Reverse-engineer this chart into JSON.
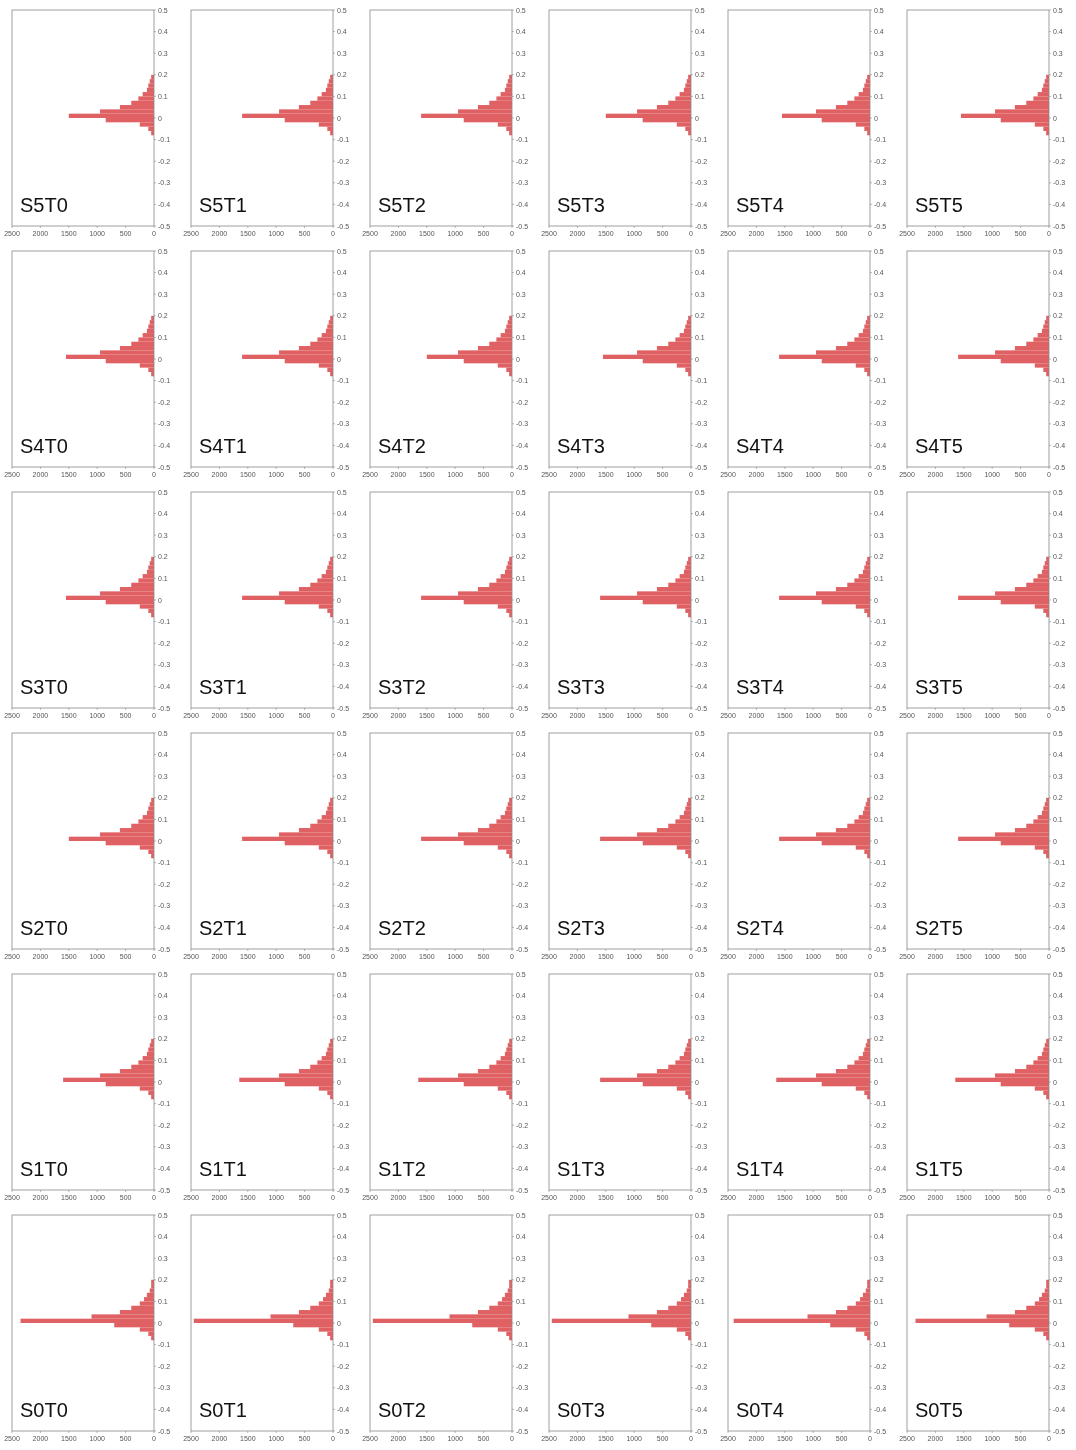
{
  "chart_data": [
    {
      "type": "histogram",
      "orientation": "horizontal",
      "title": "S5T0",
      "bins": [
        -0.08,
        -0.06,
        -0.04,
        -0.02,
        0,
        0.02,
        0.04,
        0.06,
        0.08,
        0.1,
        0.12,
        0.14,
        0.16,
        0.18,
        0.2
      ],
      "values": [
        50,
        100,
        250,
        850,
        1500,
        950,
        600,
        400,
        275,
        200,
        125,
        100,
        75,
        50
      ],
      "color": "#e06163",
      "xlim": [
        2500,
        0
      ],
      "xticks": [
        0,
        500,
        1000,
        1500,
        2000,
        2500
      ],
      "ylim": [
        -0.5,
        0.5
      ],
      "yticks": [
        -0.5,
        -0.4,
        -0.3,
        -0.2,
        -0.1,
        0,
        0.1,
        0.2,
        0.3,
        0.4,
        0.5
      ]
    },
    {
      "type": "histogram",
      "orientation": "horizontal",
      "title": "S5T1",
      "bins": [
        -0.08,
        -0.06,
        -0.04,
        -0.02,
        0,
        0.02,
        0.04,
        0.06,
        0.08,
        0.1,
        0.12,
        0.14,
        0.16,
        0.18,
        0.2
      ],
      "values": [
        50,
        100,
        250,
        850,
        1600,
        950,
        600,
        400,
        275,
        200,
        125,
        100,
        75,
        50
      ],
      "color": "#e06163",
      "xlim": [
        2500,
        0
      ],
      "xticks": [
        0,
        500,
        1000,
        1500,
        2000,
        2500
      ],
      "ylim": [
        -0.5,
        0.5
      ],
      "yticks": [
        -0.5,
        -0.4,
        -0.3,
        -0.2,
        -0.1,
        0,
        0.1,
        0.2,
        0.3,
        0.4,
        0.5
      ]
    },
    {
      "type": "histogram",
      "orientation": "horizontal",
      "title": "S5T2",
      "bins": [
        -0.08,
        -0.06,
        -0.04,
        -0.02,
        0,
        0.02,
        0.04,
        0.06,
        0.08,
        0.1,
        0.12,
        0.14,
        0.16,
        0.18,
        0.2
      ],
      "values": [
        50,
        100,
        250,
        850,
        1600,
        950,
        600,
        400,
        275,
        200,
        125,
        100,
        75,
        50
      ],
      "color": "#e06163",
      "xlim": [
        2500,
        0
      ],
      "xticks": [
        0,
        500,
        1000,
        1500,
        2000,
        2500
      ],
      "ylim": [
        -0.5,
        0.5
      ],
      "yticks": [
        -0.5,
        -0.4,
        -0.3,
        -0.2,
        -0.1,
        0,
        0.1,
        0.2,
        0.3,
        0.4,
        0.5
      ]
    },
    {
      "type": "histogram",
      "orientation": "horizontal",
      "title": "S5T3",
      "bins": [
        -0.08,
        -0.06,
        -0.04,
        -0.02,
        0,
        0.02,
        0.04,
        0.06,
        0.08,
        0.1,
        0.12,
        0.14,
        0.16,
        0.18,
        0.2
      ],
      "values": [
        50,
        100,
        250,
        850,
        1500,
        950,
        600,
        400,
        275,
        200,
        125,
        100,
        75,
        50
      ],
      "color": "#e06163",
      "xlim": [
        2500,
        0
      ],
      "xticks": [
        0,
        500,
        1000,
        1500,
        2000,
        2500
      ],
      "ylim": [
        -0.5,
        0.5
      ],
      "yticks": [
        -0.5,
        -0.4,
        -0.3,
        -0.2,
        -0.1,
        0,
        0.1,
        0.2,
        0.3,
        0.4,
        0.5
      ]
    },
    {
      "type": "histogram",
      "orientation": "horizontal",
      "title": "S5T4",
      "bins": [
        -0.08,
        -0.06,
        -0.04,
        -0.02,
        0,
        0.02,
        0.04,
        0.06,
        0.08,
        0.1,
        0.12,
        0.14,
        0.16,
        0.18,
        0.2
      ],
      "values": [
        50,
        100,
        250,
        850,
        1550,
        950,
        600,
        400,
        275,
        200,
        125,
        100,
        75,
        50
      ],
      "color": "#e06163",
      "xlim": [
        2500,
        0
      ],
      "xticks": [
        0,
        500,
        1000,
        1500,
        2000,
        2500
      ],
      "ylim": [
        -0.5,
        0.5
      ],
      "yticks": [
        -0.5,
        -0.4,
        -0.3,
        -0.2,
        -0.1,
        0,
        0.1,
        0.2,
        0.3,
        0.4,
        0.5
      ]
    },
    {
      "type": "histogram",
      "orientation": "horizontal",
      "title": "S5T5",
      "bins": [
        -0.08,
        -0.06,
        -0.04,
        -0.02,
        0,
        0.02,
        0.04,
        0.06,
        0.08,
        0.1,
        0.12,
        0.14,
        0.16,
        0.18,
        0.2
      ],
      "values": [
        50,
        100,
        250,
        850,
        1550,
        950,
        600,
        400,
        275,
        200,
        125,
        100,
        75,
        50
      ],
      "color": "#e06163",
      "xlim": [
        2500,
        0
      ],
      "xticks": [
        0,
        500,
        1000,
        1500,
        2000,
        2500
      ],
      "ylim": [
        -0.5,
        0.5
      ],
      "yticks": [
        -0.5,
        -0.4,
        -0.3,
        -0.2,
        -0.1,
        0,
        0.1,
        0.2,
        0.3,
        0.4,
        0.5
      ]
    },
    {
      "type": "histogram",
      "orientation": "horizontal",
      "title": "S4T0",
      "bins": [
        -0.08,
        -0.06,
        -0.04,
        -0.02,
        0,
        0.02,
        0.04,
        0.06,
        0.08,
        0.1,
        0.12,
        0.14,
        0.16,
        0.18,
        0.2
      ],
      "values": [
        50,
        100,
        250,
        850,
        1550,
        950,
        600,
        400,
        275,
        200,
        125,
        100,
        75,
        50
      ],
      "color": "#e06163",
      "xlim": [
        2500,
        0
      ],
      "xticks": [
        0,
        500,
        1000,
        1500,
        2000,
        2500
      ],
      "ylim": [
        -0.5,
        0.5
      ],
      "yticks": [
        -0.5,
        -0.4,
        -0.3,
        -0.2,
        -0.1,
        0,
        0.1,
        0.2,
        0.3,
        0.4,
        0.5
      ]
    },
    {
      "type": "histogram",
      "orientation": "horizontal",
      "title": "S4T1",
      "bins": [
        -0.08,
        -0.06,
        -0.04,
        -0.02,
        0,
        0.02,
        0.04,
        0.06,
        0.08,
        0.1,
        0.12,
        0.14,
        0.16,
        0.18,
        0.2
      ],
      "values": [
        50,
        100,
        250,
        850,
        1600,
        950,
        600,
        400,
        275,
        200,
        125,
        100,
        75,
        50
      ],
      "color": "#e06163",
      "xlim": [
        2500,
        0
      ],
      "xticks": [
        0,
        500,
        1000,
        1500,
        2000,
        2500
      ],
      "ylim": [
        -0.5,
        0.5
      ],
      "yticks": [
        -0.5,
        -0.4,
        -0.3,
        -0.2,
        -0.1,
        0,
        0.1,
        0.2,
        0.3,
        0.4,
        0.5
      ]
    },
    {
      "type": "histogram",
      "orientation": "horizontal",
      "title": "S4T2",
      "bins": [
        -0.08,
        -0.06,
        -0.04,
        -0.02,
        0,
        0.02,
        0.04,
        0.06,
        0.08,
        0.1,
        0.12,
        0.14,
        0.16,
        0.18,
        0.2
      ],
      "values": [
        50,
        100,
        250,
        850,
        1500,
        950,
        600,
        400,
        275,
        200,
        125,
        100,
        75,
        50
      ],
      "color": "#e06163",
      "xlim": [
        2500,
        0
      ],
      "xticks": [
        0,
        500,
        1000,
        1500,
        2000,
        2500
      ],
      "ylim": [
        -0.5,
        0.5
      ],
      "yticks": [
        -0.5,
        -0.4,
        -0.3,
        -0.2,
        -0.1,
        0,
        0.1,
        0.2,
        0.3,
        0.4,
        0.5
      ]
    },
    {
      "type": "histogram",
      "orientation": "horizontal",
      "title": "S4T3",
      "bins": [
        -0.08,
        -0.06,
        -0.04,
        -0.02,
        0,
        0.02,
        0.04,
        0.06,
        0.08,
        0.1,
        0.12,
        0.14,
        0.16,
        0.18,
        0.2
      ],
      "values": [
        50,
        100,
        250,
        850,
        1550,
        950,
        600,
        400,
        275,
        200,
        125,
        100,
        75,
        50
      ],
      "color": "#e06163",
      "xlim": [
        2500,
        0
      ],
      "xticks": [
        0,
        500,
        1000,
        1500,
        2000,
        2500
      ],
      "ylim": [
        -0.5,
        0.5
      ],
      "yticks": [
        -0.5,
        -0.4,
        -0.3,
        -0.2,
        -0.1,
        0,
        0.1,
        0.2,
        0.3,
        0.4,
        0.5
      ]
    },
    {
      "type": "histogram",
      "orientation": "horizontal",
      "title": "S4T4",
      "bins": [
        -0.08,
        -0.06,
        -0.04,
        -0.02,
        0,
        0.02,
        0.04,
        0.06,
        0.08,
        0.1,
        0.12,
        0.14,
        0.16,
        0.18,
        0.2
      ],
      "values": [
        50,
        100,
        250,
        850,
        1600,
        950,
        600,
        400,
        275,
        200,
        125,
        100,
        75,
        50
      ],
      "color": "#e06163",
      "xlim": [
        2500,
        0
      ],
      "xticks": [
        0,
        500,
        1000,
        1500,
        2000,
        2500
      ],
      "ylim": [
        -0.5,
        0.5
      ],
      "yticks": [
        -0.5,
        -0.4,
        -0.3,
        -0.2,
        -0.1,
        0,
        0.1,
        0.2,
        0.3,
        0.4,
        0.5
      ]
    },
    {
      "type": "histogram",
      "orientation": "horizontal",
      "title": "S4T5",
      "bins": [
        -0.08,
        -0.06,
        -0.04,
        -0.02,
        0,
        0.02,
        0.04,
        0.06,
        0.08,
        0.1,
        0.12,
        0.14,
        0.16,
        0.18,
        0.2
      ],
      "values": [
        50,
        100,
        250,
        850,
        1600,
        950,
        600,
        400,
        275,
        200,
        125,
        100,
        75,
        50
      ],
      "color": "#e06163",
      "xlim": [
        2500,
        0
      ],
      "xticks": [
        0,
        500,
        1000,
        1500,
        2000,
        2500
      ],
      "ylim": [
        -0.5,
        0.5
      ],
      "yticks": [
        -0.5,
        -0.4,
        -0.3,
        -0.2,
        -0.1,
        0,
        0.1,
        0.2,
        0.3,
        0.4,
        0.5
      ]
    },
    {
      "type": "histogram",
      "orientation": "horizontal",
      "title": "S3T0",
      "bins": [
        -0.08,
        -0.06,
        -0.04,
        -0.02,
        0,
        0.02,
        0.04,
        0.06,
        0.08,
        0.1,
        0.12,
        0.14,
        0.16,
        0.18,
        0.2
      ],
      "values": [
        50,
        100,
        250,
        850,
        1550,
        950,
        600,
        400,
        275,
        200,
        125,
        100,
        75,
        50
      ],
      "color": "#e06163",
      "xlim": [
        2500,
        0
      ],
      "xticks": [
        0,
        500,
        1000,
        1500,
        2000,
        2500
      ],
      "ylim": [
        -0.5,
        0.5
      ],
      "yticks": [
        -0.5,
        -0.4,
        -0.3,
        -0.2,
        -0.1,
        0,
        0.1,
        0.2,
        0.3,
        0.4,
        0.5
      ]
    },
    {
      "type": "histogram",
      "orientation": "horizontal",
      "title": "S3T1",
      "bins": [
        -0.08,
        -0.06,
        -0.04,
        -0.02,
        0,
        0.02,
        0.04,
        0.06,
        0.08,
        0.1,
        0.12,
        0.14,
        0.16,
        0.18,
        0.2
      ],
      "values": [
        50,
        100,
        250,
        850,
        1600,
        950,
        600,
        400,
        275,
        200,
        125,
        100,
        75,
        50
      ],
      "color": "#e06163",
      "xlim": [
        2500,
        0
      ],
      "xticks": [
        0,
        500,
        1000,
        1500,
        2000,
        2500
      ],
      "ylim": [
        -0.5,
        0.5
      ],
      "yticks": [
        -0.5,
        -0.4,
        -0.3,
        -0.2,
        -0.1,
        0,
        0.1,
        0.2,
        0.3,
        0.4,
        0.5
      ]
    },
    {
      "type": "histogram",
      "orientation": "horizontal",
      "title": "S3T2",
      "bins": [
        -0.08,
        -0.06,
        -0.04,
        -0.02,
        0,
        0.02,
        0.04,
        0.06,
        0.08,
        0.1,
        0.12,
        0.14,
        0.16,
        0.18,
        0.2
      ],
      "values": [
        50,
        100,
        250,
        850,
        1600,
        950,
        600,
        400,
        275,
        200,
        125,
        100,
        75,
        50
      ],
      "color": "#e06163",
      "xlim": [
        2500,
        0
      ],
      "xticks": [
        0,
        500,
        1000,
        1500,
        2000,
        2500
      ],
      "ylim": [
        -0.5,
        0.5
      ],
      "yticks": [
        -0.5,
        -0.4,
        -0.3,
        -0.2,
        -0.1,
        0,
        0.1,
        0.2,
        0.3,
        0.4,
        0.5
      ]
    },
    {
      "type": "histogram",
      "orientation": "horizontal",
      "title": "S3T3",
      "bins": [
        -0.08,
        -0.06,
        -0.04,
        -0.02,
        0,
        0.02,
        0.04,
        0.06,
        0.08,
        0.1,
        0.12,
        0.14,
        0.16,
        0.18,
        0.2
      ],
      "values": [
        50,
        100,
        250,
        850,
        1600,
        950,
        600,
        400,
        275,
        200,
        125,
        100,
        75,
        50
      ],
      "color": "#e06163",
      "xlim": [
        2500,
        0
      ],
      "xticks": [
        0,
        500,
        1000,
        1500,
        2000,
        2500
      ],
      "ylim": [
        -0.5,
        0.5
      ],
      "yticks": [
        -0.5,
        -0.4,
        -0.3,
        -0.2,
        -0.1,
        0,
        0.1,
        0.2,
        0.3,
        0.4,
        0.5
      ]
    },
    {
      "type": "histogram",
      "orientation": "horizontal",
      "title": "S3T4",
      "bins": [
        -0.08,
        -0.06,
        -0.04,
        -0.02,
        0,
        0.02,
        0.04,
        0.06,
        0.08,
        0.1,
        0.12,
        0.14,
        0.16,
        0.18,
        0.2
      ],
      "values": [
        50,
        100,
        250,
        850,
        1600,
        950,
        600,
        400,
        275,
        200,
        125,
        100,
        75,
        50
      ],
      "color": "#e06163",
      "xlim": [
        2500,
        0
      ],
      "xticks": [
        0,
        500,
        1000,
        1500,
        2000,
        2500
      ],
      "ylim": [
        -0.5,
        0.5
      ],
      "yticks": [
        -0.5,
        -0.4,
        -0.3,
        -0.2,
        -0.1,
        0,
        0.1,
        0.2,
        0.3,
        0.4,
        0.5
      ]
    },
    {
      "type": "histogram",
      "orientation": "horizontal",
      "title": "S3T5",
      "bins": [
        -0.08,
        -0.06,
        -0.04,
        -0.02,
        0,
        0.02,
        0.04,
        0.06,
        0.08,
        0.1,
        0.12,
        0.14,
        0.16,
        0.18,
        0.2
      ],
      "values": [
        50,
        100,
        250,
        850,
        1600,
        950,
        600,
        400,
        275,
        200,
        125,
        100,
        75,
        50
      ],
      "color": "#e06163",
      "xlim": [
        2500,
        0
      ],
      "xticks": [
        0,
        500,
        1000,
        1500,
        2000,
        2500
      ],
      "ylim": [
        -0.5,
        0.5
      ],
      "yticks": [
        -0.5,
        -0.4,
        -0.3,
        -0.2,
        -0.1,
        0,
        0.1,
        0.2,
        0.3,
        0.4,
        0.5
      ]
    },
    {
      "type": "histogram",
      "orientation": "horizontal",
      "title": "S2T0",
      "bins": [
        -0.08,
        -0.06,
        -0.04,
        -0.02,
        0,
        0.02,
        0.04,
        0.06,
        0.08,
        0.1,
        0.12,
        0.14,
        0.16,
        0.18,
        0.2
      ],
      "values": [
        50,
        100,
        250,
        850,
        1500,
        950,
        600,
        400,
        275,
        200,
        125,
        100,
        75,
        50
      ],
      "color": "#e06163",
      "xlim": [
        2500,
        0
      ],
      "xticks": [
        0,
        500,
        1000,
        1500,
        2000,
        2500
      ],
      "ylim": [
        -0.5,
        0.5
      ],
      "yticks": [
        -0.5,
        -0.4,
        -0.3,
        -0.2,
        -0.1,
        0,
        0.1,
        0.2,
        0.3,
        0.4,
        0.5
      ]
    },
    {
      "type": "histogram",
      "orientation": "horizontal",
      "title": "S2T1",
      "bins": [
        -0.08,
        -0.06,
        -0.04,
        -0.02,
        0,
        0.02,
        0.04,
        0.06,
        0.08,
        0.1,
        0.12,
        0.14,
        0.16,
        0.18,
        0.2
      ],
      "values": [
        50,
        100,
        250,
        850,
        1600,
        950,
        600,
        400,
        275,
        200,
        125,
        100,
        75,
        50
      ],
      "color": "#e06163",
      "xlim": [
        2500,
        0
      ],
      "xticks": [
        0,
        500,
        1000,
        1500,
        2000,
        2500
      ],
      "ylim": [
        -0.5,
        0.5
      ],
      "yticks": [
        -0.5,
        -0.4,
        -0.3,
        -0.2,
        -0.1,
        0,
        0.1,
        0.2,
        0.3,
        0.4,
        0.5
      ]
    },
    {
      "type": "histogram",
      "orientation": "horizontal",
      "title": "S2T2",
      "bins": [
        -0.08,
        -0.06,
        -0.04,
        -0.02,
        0,
        0.02,
        0.04,
        0.06,
        0.08,
        0.1,
        0.12,
        0.14,
        0.16,
        0.18,
        0.2
      ],
      "values": [
        50,
        100,
        250,
        850,
        1600,
        950,
        600,
        400,
        275,
        200,
        125,
        100,
        75,
        50
      ],
      "color": "#e06163",
      "xlim": [
        2500,
        0
      ],
      "xticks": [
        0,
        500,
        1000,
        1500,
        2000,
        2500
      ],
      "ylim": [
        -0.5,
        0.5
      ],
      "yticks": [
        -0.5,
        -0.4,
        -0.3,
        -0.2,
        -0.1,
        0,
        0.1,
        0.2,
        0.3,
        0.4,
        0.5
      ]
    },
    {
      "type": "histogram",
      "orientation": "horizontal",
      "title": "S2T3",
      "bins": [
        -0.08,
        -0.06,
        -0.04,
        -0.02,
        0,
        0.02,
        0.04,
        0.06,
        0.08,
        0.1,
        0.12,
        0.14,
        0.16,
        0.18,
        0.2
      ],
      "values": [
        50,
        100,
        250,
        850,
        1600,
        950,
        600,
        400,
        275,
        200,
        125,
        100,
        75,
        50
      ],
      "color": "#e06163",
      "xlim": [
        2500,
        0
      ],
      "xticks": [
        0,
        500,
        1000,
        1500,
        2000,
        2500
      ],
      "ylim": [
        -0.5,
        0.5
      ],
      "yticks": [
        -0.5,
        -0.4,
        -0.3,
        -0.2,
        -0.1,
        0,
        0.1,
        0.2,
        0.3,
        0.4,
        0.5
      ]
    },
    {
      "type": "histogram",
      "orientation": "horizontal",
      "title": "S2T4",
      "bins": [
        -0.08,
        -0.06,
        -0.04,
        -0.02,
        0,
        0.02,
        0.04,
        0.06,
        0.08,
        0.1,
        0.12,
        0.14,
        0.16,
        0.18,
        0.2
      ],
      "values": [
        50,
        100,
        250,
        850,
        1600,
        950,
        600,
        400,
        275,
        200,
        125,
        100,
        75,
        50
      ],
      "color": "#e06163",
      "xlim": [
        2500,
        0
      ],
      "xticks": [
        0,
        500,
        1000,
        1500,
        2000,
        2500
      ],
      "ylim": [
        -0.5,
        0.5
      ],
      "yticks": [
        -0.5,
        -0.4,
        -0.3,
        -0.2,
        -0.1,
        0,
        0.1,
        0.2,
        0.3,
        0.4,
        0.5
      ]
    },
    {
      "type": "histogram",
      "orientation": "horizontal",
      "title": "S2T5",
      "bins": [
        -0.08,
        -0.06,
        -0.04,
        -0.02,
        0,
        0.02,
        0.04,
        0.06,
        0.08,
        0.1,
        0.12,
        0.14,
        0.16,
        0.18,
        0.2
      ],
      "values": [
        50,
        100,
        250,
        850,
        1600,
        950,
        600,
        400,
        275,
        200,
        125,
        100,
        75,
        50
      ],
      "color": "#e06163",
      "xlim": [
        2500,
        0
      ],
      "xticks": [
        0,
        500,
        1000,
        1500,
        2000,
        2500
      ],
      "ylim": [
        -0.5,
        0.5
      ],
      "yticks": [
        -0.5,
        -0.4,
        -0.3,
        -0.2,
        -0.1,
        0,
        0.1,
        0.2,
        0.3,
        0.4,
        0.5
      ]
    },
    {
      "type": "histogram",
      "orientation": "horizontal",
      "title": "S1T0",
      "bins": [
        -0.08,
        -0.06,
        -0.04,
        -0.02,
        0,
        0.02,
        0.04,
        0.06,
        0.08,
        0.1,
        0.12,
        0.14,
        0.16,
        0.18,
        0.2
      ],
      "values": [
        50,
        100,
        250,
        850,
        1600,
        950,
        600,
        400,
        275,
        200,
        125,
        100,
        75,
        50
      ],
      "color": "#e06163",
      "xlim": [
        2500,
        0
      ],
      "xticks": [
        0,
        500,
        1000,
        1500,
        2000,
        2500
      ],
      "ylim": [
        -0.5,
        0.5
      ],
      "yticks": [
        -0.5,
        -0.4,
        -0.3,
        -0.2,
        -0.1,
        0,
        0.1,
        0.2,
        0.3,
        0.4,
        0.5
      ]
    },
    {
      "type": "histogram",
      "orientation": "horizontal",
      "title": "S1T1",
      "bins": [
        -0.08,
        -0.06,
        -0.04,
        -0.02,
        0,
        0.02,
        0.04,
        0.06,
        0.08,
        0.1,
        0.12,
        0.14,
        0.16,
        0.18,
        0.2
      ],
      "values": [
        50,
        100,
        250,
        850,
        1650,
        950,
        600,
        400,
        275,
        200,
        125,
        100,
        75,
        50
      ],
      "color": "#e06163",
      "xlim": [
        2500,
        0
      ],
      "xticks": [
        0,
        500,
        1000,
        1500,
        2000,
        2500
      ],
      "ylim": [
        -0.5,
        0.5
      ],
      "yticks": [
        -0.5,
        -0.4,
        -0.3,
        -0.2,
        -0.1,
        0,
        0.1,
        0.2,
        0.3,
        0.4,
        0.5
      ]
    },
    {
      "type": "histogram",
      "orientation": "horizontal",
      "title": "S1T2",
      "bins": [
        -0.08,
        -0.06,
        -0.04,
        -0.02,
        0,
        0.02,
        0.04,
        0.06,
        0.08,
        0.1,
        0.12,
        0.14,
        0.16,
        0.18,
        0.2
      ],
      "values": [
        50,
        100,
        250,
        850,
        1650,
        950,
        600,
        400,
        275,
        200,
        125,
        100,
        75,
        50
      ],
      "color": "#e06163",
      "xlim": [
        2500,
        0
      ],
      "xticks": [
        0,
        500,
        1000,
        1500,
        2000,
        2500
      ],
      "ylim": [
        -0.5,
        0.5
      ],
      "yticks": [
        -0.5,
        -0.4,
        -0.3,
        -0.2,
        -0.1,
        0,
        0.1,
        0.2,
        0.3,
        0.4,
        0.5
      ]
    },
    {
      "type": "histogram",
      "orientation": "horizontal",
      "title": "S1T3",
      "bins": [
        -0.08,
        -0.06,
        -0.04,
        -0.02,
        0,
        0.02,
        0.04,
        0.06,
        0.08,
        0.1,
        0.12,
        0.14,
        0.16,
        0.18,
        0.2
      ],
      "values": [
        50,
        100,
        250,
        850,
        1600,
        950,
        600,
        400,
        275,
        200,
        125,
        100,
        75,
        50
      ],
      "color": "#e06163",
      "xlim": [
        2500,
        0
      ],
      "xticks": [
        0,
        500,
        1000,
        1500,
        2000,
        2500
      ],
      "ylim": [
        -0.5,
        0.5
      ],
      "yticks": [
        -0.5,
        -0.4,
        -0.3,
        -0.2,
        -0.1,
        0,
        0.1,
        0.2,
        0.3,
        0.4,
        0.5
      ]
    },
    {
      "type": "histogram",
      "orientation": "horizontal",
      "title": "S1T4",
      "bins": [
        -0.08,
        -0.06,
        -0.04,
        -0.02,
        0,
        0.02,
        0.04,
        0.06,
        0.08,
        0.1,
        0.12,
        0.14,
        0.16,
        0.18,
        0.2
      ],
      "values": [
        50,
        100,
        250,
        850,
        1650,
        950,
        600,
        400,
        275,
        200,
        125,
        100,
        75,
        50
      ],
      "color": "#e06163",
      "xlim": [
        2500,
        0
      ],
      "xticks": [
        0,
        500,
        1000,
        1500,
        2000,
        2500
      ],
      "ylim": [
        -0.5,
        0.5
      ],
      "yticks": [
        -0.5,
        -0.4,
        -0.3,
        -0.2,
        -0.1,
        0,
        0.1,
        0.2,
        0.3,
        0.4,
        0.5
      ]
    },
    {
      "type": "histogram",
      "orientation": "horizontal",
      "title": "S1T5",
      "bins": [
        -0.08,
        -0.06,
        -0.04,
        -0.02,
        0,
        0.02,
        0.04,
        0.06,
        0.08,
        0.1,
        0.12,
        0.14,
        0.16,
        0.18,
        0.2
      ],
      "values": [
        50,
        100,
        250,
        850,
        1650,
        950,
        600,
        400,
        275,
        200,
        125,
        100,
        75,
        50
      ],
      "color": "#e06163",
      "xlim": [
        2500,
        0
      ],
      "xticks": [
        0,
        500,
        1000,
        1500,
        2000,
        2500
      ],
      "ylim": [
        -0.5,
        0.5
      ],
      "yticks": [
        -0.5,
        -0.4,
        -0.3,
        -0.2,
        -0.1,
        0,
        0.1,
        0.2,
        0.3,
        0.4,
        0.5
      ]
    },
    {
      "type": "histogram",
      "orientation": "horizontal",
      "title": "S0T0",
      "bins": [
        -0.08,
        -0.06,
        -0.04,
        -0.02,
        0,
        0.02,
        0.04,
        0.06,
        0.08,
        0.1,
        0.12,
        0.14,
        0.16,
        0.18,
        0.2
      ],
      "values": [
        50,
        100,
        250,
        700,
        2350,
        1100,
        600,
        400,
        250,
        175,
        125,
        75,
        50,
        50
      ],
      "color": "#e06163",
      "xlim": [
        2500,
        0
      ],
      "xticks": [
        0,
        500,
        1000,
        1500,
        2000,
        2500
      ],
      "ylim": [
        -0.5,
        0.5
      ],
      "yticks": [
        -0.5,
        -0.4,
        -0.3,
        -0.2,
        -0.1,
        0,
        0.1,
        0.2,
        0.3,
        0.4,
        0.5
      ]
    },
    {
      "type": "histogram",
      "orientation": "horizontal",
      "title": "S0T1",
      "bins": [
        -0.08,
        -0.06,
        -0.04,
        -0.02,
        0,
        0.02,
        0.04,
        0.06,
        0.08,
        0.1,
        0.12,
        0.14,
        0.16,
        0.18,
        0.2
      ],
      "values": [
        50,
        100,
        250,
        700,
        2450,
        1100,
        600,
        400,
        250,
        175,
        125,
        75,
        50,
        50
      ],
      "color": "#e06163",
      "xlim": [
        2500,
        0
      ],
      "xticks": [
        0,
        500,
        1000,
        1500,
        2000,
        2500
      ],
      "ylim": [
        -0.5,
        0.5
      ],
      "yticks": [
        -0.5,
        -0.4,
        -0.3,
        -0.2,
        -0.1,
        0,
        0.1,
        0.2,
        0.3,
        0.4,
        0.5
      ]
    },
    {
      "type": "histogram",
      "orientation": "horizontal",
      "title": "S0T2",
      "bins": [
        -0.08,
        -0.06,
        -0.04,
        -0.02,
        0,
        0.02,
        0.04,
        0.06,
        0.08,
        0.1,
        0.12,
        0.14,
        0.16,
        0.18,
        0.2
      ],
      "values": [
        50,
        100,
        250,
        700,
        2450,
        1100,
        600,
        400,
        250,
        175,
        125,
        75,
        50,
        50
      ],
      "color": "#e06163",
      "xlim": [
        2500,
        0
      ],
      "xticks": [
        0,
        500,
        1000,
        1500,
        2000,
        2500
      ],
      "ylim": [
        -0.5,
        0.5
      ],
      "yticks": [
        -0.5,
        -0.4,
        -0.3,
        -0.2,
        -0.1,
        0,
        0.1,
        0.2,
        0.3,
        0.4,
        0.5
      ]
    },
    {
      "type": "histogram",
      "orientation": "horizontal",
      "title": "S0T3",
      "bins": [
        -0.08,
        -0.06,
        -0.04,
        -0.02,
        0,
        0.02,
        0.04,
        0.06,
        0.08,
        0.1,
        0.12,
        0.14,
        0.16,
        0.18,
        0.2
      ],
      "values": [
        50,
        100,
        250,
        700,
        2450,
        1100,
        600,
        400,
        250,
        175,
        125,
        75,
        50,
        50
      ],
      "color": "#e06163",
      "xlim": [
        2500,
        0
      ],
      "xticks": [
        0,
        500,
        1000,
        1500,
        2000,
        2500
      ],
      "ylim": [
        -0.5,
        0.5
      ],
      "yticks": [
        -0.5,
        -0.4,
        -0.3,
        -0.2,
        -0.1,
        0,
        0.1,
        0.2,
        0.3,
        0.4,
        0.5
      ]
    },
    {
      "type": "histogram",
      "orientation": "horizontal",
      "title": "S0T4",
      "bins": [
        -0.08,
        -0.06,
        -0.04,
        -0.02,
        0,
        0.02,
        0.04,
        0.06,
        0.08,
        0.1,
        0.12,
        0.14,
        0.16,
        0.18,
        0.2
      ],
      "values": [
        50,
        100,
        250,
        700,
        2400,
        1100,
        600,
        400,
        250,
        175,
        125,
        75,
        50,
        50
      ],
      "color": "#e06163",
      "xlim": [
        2500,
        0
      ],
      "xticks": [
        0,
        500,
        1000,
        1500,
        2000,
        2500
      ],
      "ylim": [
        -0.5,
        0.5
      ],
      "yticks": [
        -0.5,
        -0.4,
        -0.3,
        -0.2,
        -0.1,
        0,
        0.1,
        0.2,
        0.3,
        0.4,
        0.5
      ]
    },
    {
      "type": "histogram",
      "orientation": "horizontal",
      "title": "S0T5",
      "bins": [
        -0.08,
        -0.06,
        -0.04,
        -0.02,
        0,
        0.02,
        0.04,
        0.06,
        0.08,
        0.1,
        0.12,
        0.14,
        0.16,
        0.18,
        0.2
      ],
      "values": [
        50,
        100,
        250,
        700,
        2350,
        1100,
        600,
        400,
        250,
        175,
        125,
        75,
        50,
        50
      ],
      "color": "#e06163",
      "xlim": [
        2500,
        0
      ],
      "xticks": [
        0,
        500,
        1000,
        1500,
        2000,
        2500
      ],
      "ylim": [
        -0.5,
        0.5
      ],
      "yticks": [
        -0.5,
        -0.4,
        -0.3,
        -0.2,
        -0.1,
        0,
        0.1,
        0.2,
        0.3,
        0.4,
        0.5
      ]
    }
  ]
}
